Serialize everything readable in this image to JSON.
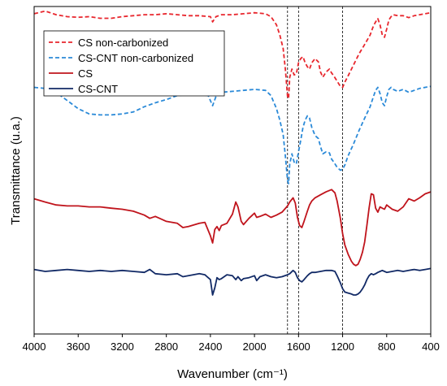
{
  "chart_data": {
    "type": "line",
    "title": "",
    "xlabel": "Wavenumber (cm⁻¹)",
    "ylabel": "Transmittance  (u.a.)",
    "xlim": [
      4000,
      400
    ],
    "x_reversed": true,
    "x_ticks": [
      4000,
      3600,
      3200,
      2800,
      2400,
      2000,
      1600,
      1200,
      800,
      400
    ],
    "y_ticks_shown": false,
    "y_range": [
      0,
      100
    ],
    "grid": false,
    "legend_position": "top-left",
    "reference_lines_x": [
      1700,
      1600,
      1200
    ],
    "series": [
      {
        "name": "CS non-carbonized",
        "color": "#e8262d",
        "dash": "dashed",
        "x": [
          4000,
          3900,
          3800,
          3700,
          3600,
          3500,
          3400,
          3300,
          3200,
          3100,
          3000,
          2900,
          2800,
          2700,
          2600,
          2500,
          2400,
          2380,
          2350,
          2300,
          2200,
          2100,
          2000,
          1900,
          1850,
          1800,
          1770,
          1740,
          1720,
          1700,
          1690,
          1680,
          1660,
          1640,
          1620,
          1600,
          1580,
          1560,
          1540,
          1520,
          1500,
          1480,
          1450,
          1420,
          1400,
          1380,
          1350,
          1320,
          1300,
          1280,
          1250,
          1220,
          1200,
          1180,
          1150,
          1100,
          1050,
          1000,
          950,
          920,
          900,
          880,
          860,
          840,
          820,
          800,
          780,
          760,
          740,
          700,
          650,
          600,
          550,
          500,
          450,
          400
        ],
        "y": [
          97.8,
          98.6,
          97.5,
          96.9,
          96.7,
          96.9,
          96.4,
          96.4,
          96.9,
          97.2,
          97.5,
          97.5,
          97.8,
          97.5,
          97.2,
          97.2,
          96.9,
          95.3,
          96.9,
          97.5,
          97.5,
          97.8,
          98.1,
          97.8,
          96.9,
          94.4,
          91.3,
          87.2,
          80.9,
          72.5,
          71.9,
          78.4,
          80.9,
          79.1,
          79.4,
          82.8,
          84.1,
          84.7,
          82.8,
          81.6,
          80.9,
          82.8,
          84.1,
          83.1,
          80.0,
          78.4,
          80.0,
          80.9,
          79.7,
          78.8,
          77.2,
          75.6,
          75.3,
          76.9,
          78.8,
          82.2,
          85.6,
          88.4,
          91.3,
          94.1,
          95.3,
          96.3,
          94.4,
          91.3,
          90.6,
          93.1,
          95.9,
          96.9,
          97.5,
          97.2,
          97.2,
          96.6,
          97.2,
          97.5,
          97.8,
          98.1
        ]
      },
      {
        "name": "CS-CNT non-carbonized",
        "color": "#2b8ad8",
        "dash": "dashed",
        "x": [
          4000,
          3900,
          3800,
          3700,
          3600,
          3500,
          3400,
          3300,
          3200,
          3100,
          3000,
          2900,
          2800,
          2700,
          2600,
          2500,
          2420,
          2380,
          2350,
          2300,
          2200,
          2100,
          2000,
          1900,
          1850,
          1800,
          1770,
          1740,
          1720,
          1700,
          1690,
          1680,
          1660,
          1640,
          1620,
          1600,
          1580,
          1560,
          1540,
          1520,
          1500,
          1480,
          1450,
          1420,
          1400,
          1380,
          1350,
          1320,
          1300,
          1280,
          1250,
          1220,
          1200,
          1180,
          1150,
          1100,
          1050,
          1000,
          950,
          920,
          900,
          880,
          860,
          840,
          820,
          800,
          780,
          760,
          740,
          700,
          650,
          600,
          550,
          500,
          450,
          400
        ],
        "y": [
          75.3,
          75.0,
          73.8,
          71.3,
          68.8,
          67.2,
          66.9,
          66.9,
          67.2,
          67.8,
          69.4,
          70.6,
          71.6,
          72.8,
          73.1,
          73.1,
          72.8,
          69.7,
          72.5,
          73.8,
          74.1,
          74.4,
          74.7,
          74.4,
          72.8,
          68.8,
          65.3,
          60.9,
          54.4,
          46.9,
          45.9,
          51.9,
          55.0,
          52.5,
          51.9,
          55.6,
          59.1,
          63.1,
          65.3,
          66.6,
          65.9,
          63.1,
          60.6,
          59.7,
          57.2,
          55.0,
          55.6,
          55.3,
          53.4,
          52.5,
          50.9,
          50.0,
          50.3,
          51.6,
          54.4,
          58.1,
          62.2,
          65.9,
          69.4,
          72.5,
          74.4,
          75.3,
          73.4,
          70.6,
          69.7,
          72.5,
          74.7,
          75.3,
          74.7,
          74.1,
          74.7,
          73.8,
          74.4,
          75.0,
          75.3,
          75.6
        ]
      },
      {
        "name": "CS",
        "color": "#c0141c",
        "dash": "solid",
        "x": [
          4000,
          3900,
          3800,
          3700,
          3600,
          3500,
          3400,
          3300,
          3200,
          3100,
          3000,
          2950,
          2900,
          2800,
          2700,
          2650,
          2600,
          2500,
          2450,
          2400,
          2380,
          2360,
          2340,
          2320,
          2300,
          2250,
          2200,
          2170,
          2150,
          2120,
          2100,
          2050,
          2000,
          1980,
          1950,
          1900,
          1850,
          1800,
          1750,
          1700,
          1680,
          1650,
          1630,
          1610,
          1590,
          1570,
          1550,
          1520,
          1500,
          1480,
          1450,
          1400,
          1350,
          1300,
          1270,
          1250,
          1220,
          1200,
          1180,
          1150,
          1120,
          1100,
          1080,
          1060,
          1040,
          1020,
          1000,
          980,
          960,
          940,
          920,
          900,
          880,
          860,
          840,
          820,
          800,
          750,
          700,
          650,
          600,
          550,
          500,
          450,
          400
        ],
        "y": [
          41.3,
          40.3,
          39.4,
          39.1,
          39.1,
          38.8,
          38.8,
          38.4,
          38.1,
          37.5,
          36.3,
          35.3,
          35.9,
          34.4,
          33.8,
          32.5,
          32.8,
          33.8,
          34.1,
          30.0,
          27.8,
          31.9,
          32.8,
          31.6,
          33.1,
          33.8,
          36.6,
          40.3,
          38.8,
          34.4,
          33.4,
          35.3,
          36.9,
          35.6,
          35.9,
          36.6,
          35.6,
          36.3,
          37.2,
          39.1,
          40.3,
          41.6,
          40.0,
          35.6,
          33.1,
          32.5,
          34.4,
          37.5,
          39.4,
          40.6,
          41.6,
          42.5,
          43.4,
          44.1,
          43.1,
          40.6,
          35.3,
          30.6,
          27.2,
          24.4,
          22.2,
          21.3,
          20.9,
          21.3,
          22.8,
          25.0,
          28.1,
          33.1,
          38.4,
          42.8,
          42.5,
          38.4,
          37.2,
          38.8,
          38.4,
          38.1,
          39.4,
          38.1,
          37.5,
          38.8,
          41.3,
          40.6,
          41.6,
          42.8,
          43.4
        ]
      },
      {
        "name": "CS-CNT",
        "color": "#122a66",
        "dash": "solid",
        "x": [
          4000,
          3900,
          3800,
          3700,
          3600,
          3500,
          3400,
          3300,
          3200,
          3100,
          3000,
          2950,
          2900,
          2800,
          2700,
          2650,
          2600,
          2500,
          2450,
          2400,
          2380,
          2360,
          2340,
          2320,
          2300,
          2250,
          2200,
          2170,
          2150,
          2120,
          2100,
          2050,
          2000,
          1980,
          1950,
          1900,
          1850,
          1800,
          1750,
          1700,
          1680,
          1650,
          1630,
          1610,
          1590,
          1570,
          1550,
          1520,
          1500,
          1480,
          1450,
          1400,
          1350,
          1300,
          1270,
          1250,
          1220,
          1200,
          1180,
          1150,
          1120,
          1100,
          1080,
          1060,
          1040,
          1020,
          1000,
          980,
          960,
          940,
          920,
          900,
          880,
          860,
          840,
          820,
          800,
          750,
          700,
          650,
          600,
          550,
          500,
          450,
          400
        ],
        "y": [
          19.7,
          19.1,
          19.4,
          19.7,
          19.4,
          19.1,
          19.4,
          19.1,
          19.4,
          19.1,
          18.8,
          19.7,
          18.4,
          18.1,
          18.4,
          17.5,
          17.8,
          18.4,
          18.1,
          16.6,
          11.9,
          14.1,
          17.2,
          16.6,
          16.9,
          18.1,
          17.8,
          16.6,
          17.5,
          16.3,
          16.9,
          17.2,
          17.8,
          16.3,
          17.5,
          18.1,
          17.5,
          17.2,
          17.5,
          18.1,
          18.4,
          19.4,
          18.8,
          17.2,
          16.3,
          15.9,
          16.6,
          17.8,
          18.4,
          18.8,
          18.8,
          19.1,
          19.4,
          19.4,
          19.1,
          17.8,
          15.6,
          13.8,
          12.8,
          12.5,
          12.2,
          11.9,
          11.9,
          12.2,
          12.8,
          13.8,
          15.0,
          16.6,
          17.8,
          18.4,
          18.1,
          18.4,
          18.8,
          19.1,
          19.4,
          19.1,
          18.8,
          19.1,
          19.4,
          19.1,
          19.4,
          19.7,
          19.4,
          19.7,
          20.0
        ]
      }
    ]
  }
}
